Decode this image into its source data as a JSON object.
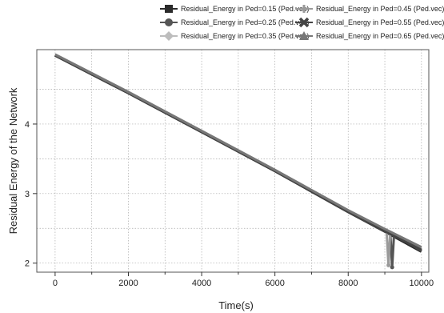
{
  "chart_data": {
    "type": "line",
    "xlabel": "Time(s)",
    "ylabel": "Residual Energy of the Network",
    "xlim": [
      -500,
      10200
    ],
    "ylim": [
      1.87,
      5.07
    ],
    "xticks": [
      "0",
      "2000",
      "4000",
      "6000",
      "8000",
      "10000"
    ],
    "yticks": [
      "2",
      "3",
      "4"
    ],
    "grid": true,
    "legend_position": "top",
    "series": [
      {
        "name": "Residual_Energy in Ped=0.15 (Ped.vec)",
        "marker": "square",
        "color": "#2b2b2b",
        "x": [
          0,
          2000,
          4000,
          6000,
          8000,
          9000,
          10000
        ],
        "y": [
          4.99,
          4.45,
          3.89,
          3.33,
          2.74,
          2.46,
          2.17
        ]
      },
      {
        "name": "Residual_Energy in Ped=0.25 (Ped.vec)",
        "marker": "circle",
        "color": "#555555",
        "x": [
          0,
          2000,
          4000,
          6000,
          8000,
          9000,
          9150,
          9200,
          9250,
          10000
        ],
        "y": [
          4.99,
          4.45,
          3.89,
          3.33,
          2.74,
          2.46,
          2.42,
          1.94,
          2.41,
          2.18
        ]
      },
      {
        "name": "Residual_Energy in Ped=0.35 (Ped.vec)",
        "marker": "diamond",
        "color": "#bdbdbd",
        "x": [
          0,
          2000,
          4000,
          6000,
          8000,
          9000,
          10000
        ],
        "y": [
          5.0,
          4.46,
          3.9,
          3.34,
          2.75,
          2.48,
          2.21
        ]
      },
      {
        "name": "Residual_Energy in Ped=0.45 (Ped.vec)",
        "marker": "plus",
        "color": "#9a9a9a",
        "x": [
          0,
          2000,
          4000,
          6000,
          8000,
          9000,
          9050,
          9100,
          9150,
          10000
        ],
        "y": [
          5.0,
          4.46,
          3.9,
          3.34,
          2.75,
          2.47,
          2.46,
          1.97,
          2.45,
          2.2
        ]
      },
      {
        "name": "Residual_Energy in Ped=0.55 (Ped.vec)",
        "marker": "x",
        "color": "#444444",
        "x": [
          0,
          2000,
          4000,
          6000,
          8000,
          9000,
          10000
        ],
        "y": [
          4.99,
          4.45,
          3.89,
          3.33,
          2.74,
          2.46,
          2.19
        ]
      },
      {
        "name": "Residual_Energy in Ped=0.65 (Ped.vec)",
        "marker": "triangle",
        "color": "#777777",
        "x": [
          0,
          2000,
          4000,
          6000,
          8000,
          9000,
          10000
        ],
        "y": [
          5.0,
          4.46,
          3.9,
          3.34,
          2.76,
          2.49,
          2.23
        ]
      }
    ]
  }
}
